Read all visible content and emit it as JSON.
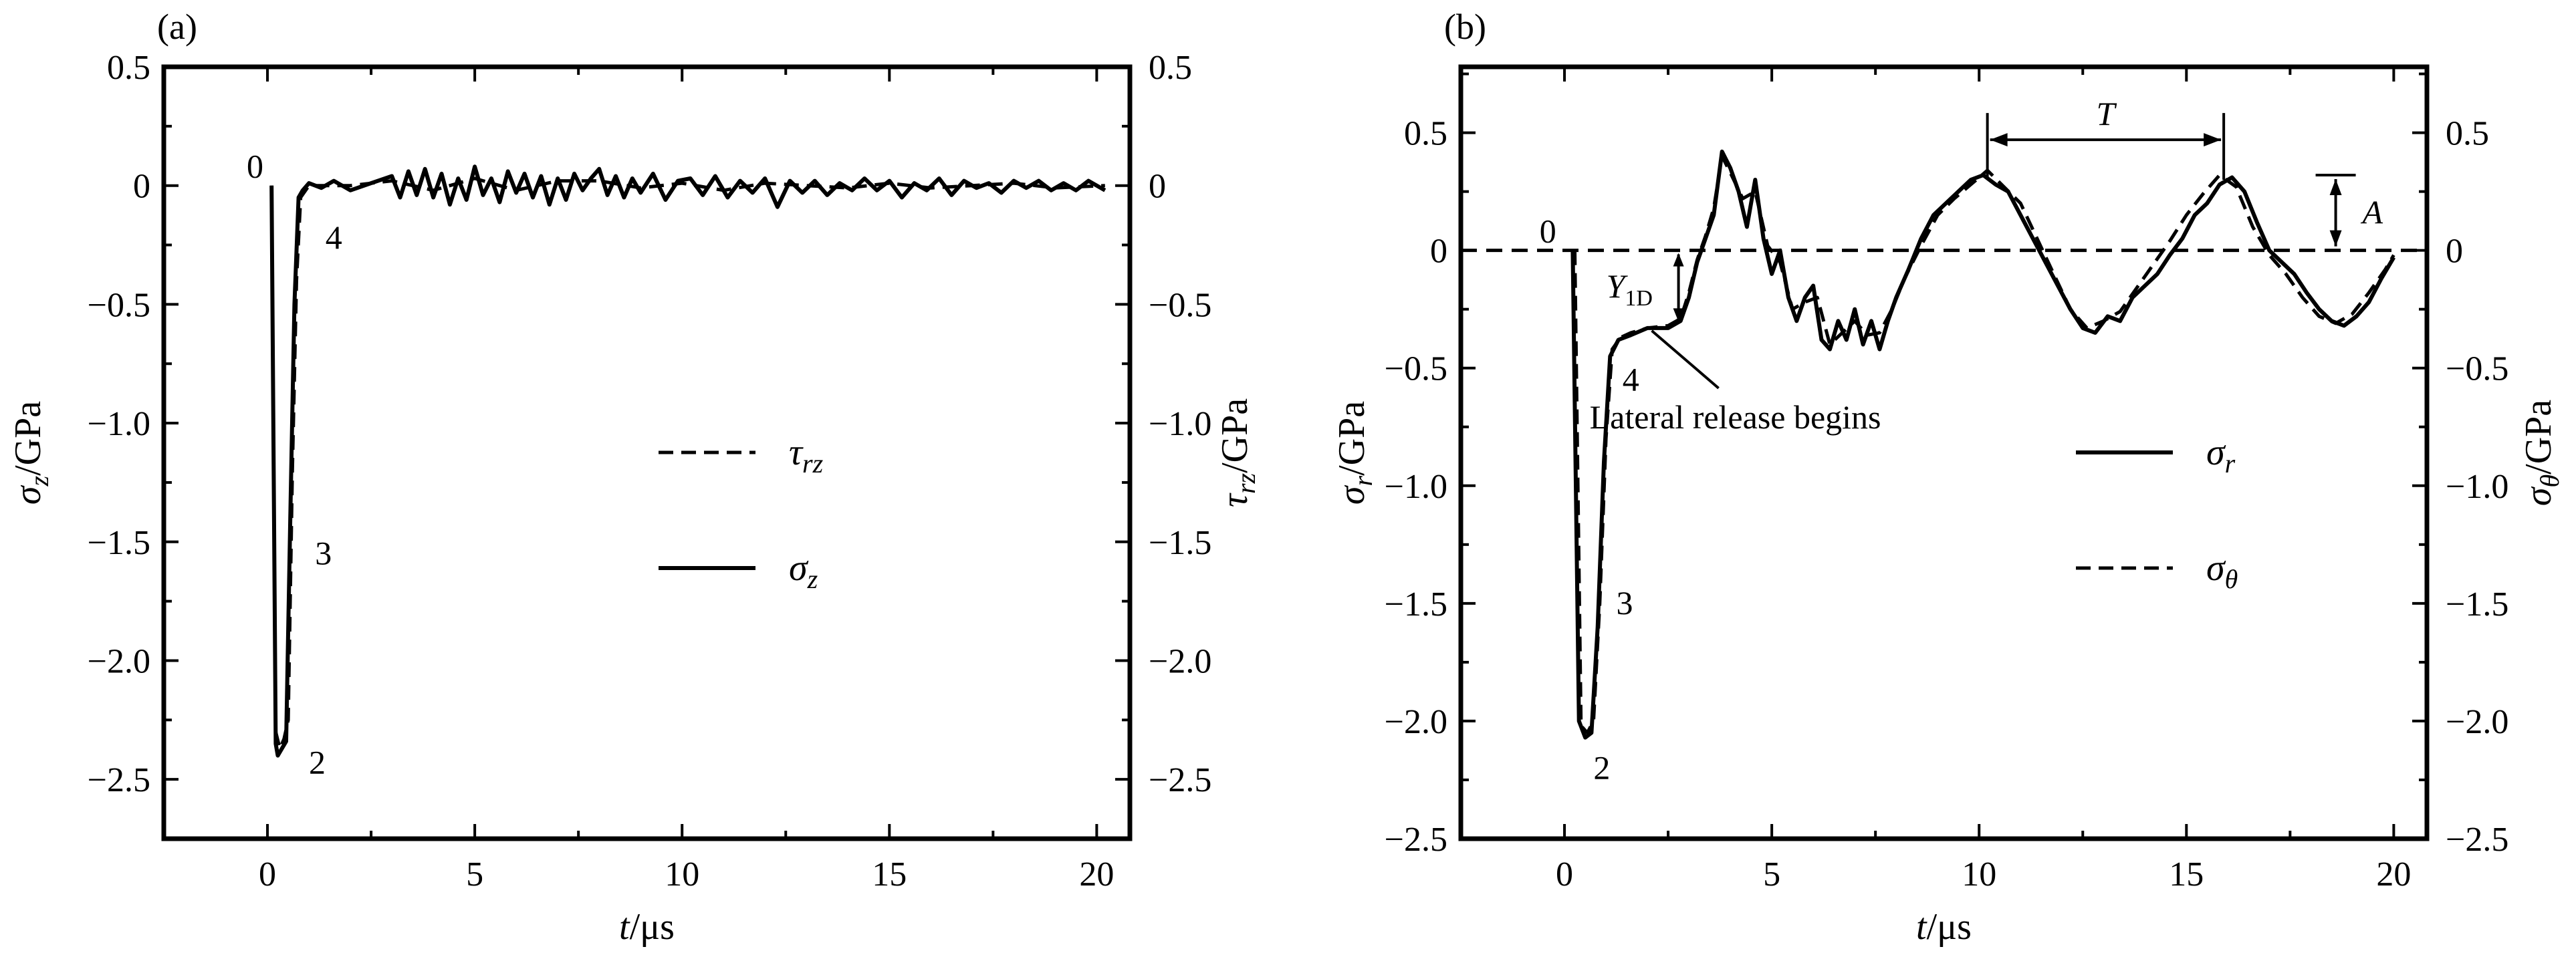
{
  "chart_data": [
    {
      "panel_label": "(a)",
      "type": "line",
      "xlabel_var": "t",
      "xlabel_unit": "/μs",
      "ylabel_left": {
        "sym": "σ",
        "sub": "z",
        "unit": "/GPa"
      },
      "ylabel_right": {
        "sym": "τ",
        "sub": "rz",
        "unit": "/GPa"
      },
      "xlim": [
        -2.5,
        20.8
      ],
      "ylim": [
        -2.75,
        0.5
      ],
      "xticks": [
        0,
        5,
        10,
        15,
        20
      ],
      "xtick_labels": [
        "0",
        "5",
        "10",
        "15",
        "20"
      ],
      "yticks": [
        0.5,
        0,
        -0.5,
        -1.0,
        -1.5,
        -2.0,
        -2.5
      ],
      "ytick_labels_left": [
        "0.5",
        "0",
        "−0.5",
        "−1.0",
        "−1.5",
        "−2.0",
        "−2.5"
      ],
      "ytick_labels_right": [
        "0.5",
        "0",
        "−0.5",
        "−1.0",
        "−1.5",
        "−2.0",
        "−2.5"
      ],
      "legend": [
        {
          "sym": "τ",
          "sub": "rz",
          "style": "dashed"
        },
        {
          "sym": "σ",
          "sub": "z",
          "style": "solid"
        }
      ],
      "point_labels": [
        {
          "text": "0",
          "x": -0.3,
          "y": 0.08
        },
        {
          "text": "4",
          "x": 1.6,
          "y": -0.22
        },
        {
          "text": "3",
          "x": 1.35,
          "y": -1.55
        },
        {
          "text": "2",
          "x": 1.2,
          "y": -2.43
        }
      ],
      "series": [
        {
          "style": "solid",
          "x": [
            0.1,
            0.2,
            0.25,
            0.35,
            0.45,
            0.55,
            0.65,
            0.75,
            0.85,
            1.0,
            1.3,
            1.6,
            2.0,
            2.5,
            3.0,
            3.2,
            3.4,
            3.6,
            3.8,
            4.0,
            4.2,
            4.4,
            4.6,
            4.8,
            5.0,
            5.2,
            5.4,
            5.6,
            5.8,
            6.0,
            6.2,
            6.4,
            6.6,
            6.8,
            7.0,
            7.2,
            7.4,
            7.6,
            7.8,
            8.0,
            8.2,
            8.4,
            8.6,
            8.8,
            9.0,
            9.3,
            9.6,
            9.9,
            10.2,
            10.5,
            10.8,
            11.1,
            11.4,
            11.7,
            12.0,
            12.3,
            12.6,
            12.9,
            13.2,
            13.5,
            13.8,
            14.1,
            14.4,
            14.7,
            15.0,
            15.3,
            15.6,
            15.9,
            16.2,
            16.5,
            16.8,
            17.1,
            17.4,
            17.7,
            18.0,
            18.3,
            18.6,
            18.9,
            19.2,
            19.5,
            19.8,
            20.2
          ],
          "y": [
            0.0,
            -2.35,
            -2.4,
            -2.37,
            -2.34,
            -1.4,
            -0.5,
            -0.05,
            -0.02,
            0.01,
            -0.01,
            0.02,
            -0.02,
            0.01,
            0.04,
            -0.05,
            0.06,
            -0.04,
            0.07,
            -0.05,
            0.05,
            -0.08,
            0.03,
            -0.06,
            0.08,
            -0.04,
            0.03,
            -0.07,
            0.06,
            -0.03,
            0.05,
            -0.05,
            0.04,
            -0.08,
            0.03,
            -0.06,
            0.05,
            -0.02,
            0.03,
            0.07,
            -0.04,
            0.04,
            -0.05,
            0.03,
            -0.03,
            0.05,
            -0.06,
            0.02,
            0.03,
            -0.04,
            0.04,
            -0.05,
            0.02,
            -0.03,
            0.03,
            -0.09,
            0.02,
            -0.03,
            0.02,
            -0.04,
            0.01,
            -0.02,
            0.03,
            -0.02,
            0.02,
            -0.05,
            0.01,
            -0.02,
            0.03,
            -0.04,
            0.02,
            -0.01,
            0.01,
            -0.03,
            0.02,
            -0.01,
            0.02,
            -0.02,
            0.01,
            -0.02,
            0.02,
            -0.02
          ]
        },
        {
          "style": "dashed",
          "x": [
            0.1,
            0.2,
            0.3,
            0.4,
            0.5,
            0.6,
            0.7,
            0.8,
            1.0,
            2.0,
            3.0,
            4.0,
            5.0,
            6.0,
            7.0,
            8.0,
            9.0,
            10.0,
            11.0,
            12.0,
            13.0,
            14.0,
            15.0,
            16.0,
            17.0,
            18.0,
            19.0,
            20.2
          ],
          "y": [
            0.0,
            -2.3,
            -2.37,
            -2.33,
            -2.25,
            -1.2,
            -0.4,
            -0.05,
            0.0,
            0.0,
            0.02,
            -0.02,
            0.03,
            -0.02,
            0.02,
            0.02,
            -0.01,
            0.01,
            -0.02,
            0.01,
            0.0,
            -0.01,
            0.01,
            -0.01,
            0.0,
            0.01,
            -0.01,
            0.0
          ]
        }
      ]
    },
    {
      "panel_label": "(b)",
      "type": "line",
      "xlabel_var": "t",
      "xlabel_unit": "/μs",
      "ylabel_left": {
        "sym": "σ",
        "sub": "r",
        "unit": "/GPa"
      },
      "ylabel_right": {
        "sym": "σ",
        "sub": "θ",
        "unit": "/GPa"
      },
      "xlim": [
        -2.5,
        20.8
      ],
      "ylim": [
        -2.5,
        0.78
      ],
      "xticks": [
        0,
        5,
        10,
        15,
        20
      ],
      "xtick_labels": [
        "0",
        "5",
        "10",
        "15",
        "20"
      ],
      "yticks": [
        0.5,
        0,
        -0.5,
        -1.0,
        -1.5,
        -2.0,
        -2.5
      ],
      "ytick_labels_left": [
        "0.5",
        "0",
        "−0.5",
        "−1.0",
        "−1.5",
        "−2.0",
        "−2.5"
      ],
      "ytick_labels_right": [
        "0.5",
        "0",
        "−0.5",
        "−1.0",
        "−1.5",
        "−2.0",
        "−2.5"
      ],
      "legend": [
        {
          "sym": "σ",
          "sub": "r",
          "style": "solid"
        },
        {
          "sym": "σ",
          "sub": "θ",
          "style": "dashed"
        }
      ],
      "point_labels": [
        {
          "text": "0",
          "x": -0.4,
          "y": 0.08
        },
        {
          "text": "4",
          "x": 1.6,
          "y": -0.55
        },
        {
          "text": "3",
          "x": 1.45,
          "y": -1.5
        },
        {
          "text": "2",
          "x": 0.9,
          "y": -2.2
        }
      ],
      "annotations": {
        "period_label": "T",
        "period_x": [
          10.2,
          15.9
        ],
        "period_y": 0.47,
        "amplitude_label": "A",
        "amplitude_x": 18.6,
        "amplitude_y": [
          0.0,
          0.32
        ],
        "yield_label": "Y",
        "yield_sub": "1D",
        "yield_x": 2.75,
        "yield_y": [
          -0.32,
          0.0
        ],
        "release_text": "Lateral release begins",
        "release_point": [
          2.75,
          -0.33
        ]
      },
      "series": [
        {
          "style": "solid",
          "x": [
            0.2,
            0.35,
            0.5,
            0.65,
            0.8,
            0.95,
            1.1,
            1.3,
            1.6,
            2.0,
            2.5,
            2.8,
            3.0,
            3.2,
            3.4,
            3.6,
            3.8,
            4.0,
            4.2,
            4.4,
            4.6,
            4.8,
            5.0,
            5.2,
            5.4,
            5.6,
            5.8,
            6.0,
            6.2,
            6.4,
            6.6,
            6.8,
            7.0,
            7.2,
            7.4,
            7.6,
            7.8,
            8.0,
            8.3,
            8.6,
            8.9,
            9.2,
            9.5,
            9.8,
            10.1,
            10.4,
            10.7,
            11.0,
            11.3,
            11.6,
            11.9,
            12.2,
            12.5,
            12.8,
            13.1,
            13.4,
            13.7,
            14.0,
            14.3,
            14.6,
            14.9,
            15.2,
            15.5,
            15.8,
            16.1,
            16.4,
            16.7,
            17.0,
            17.3,
            17.6,
            17.9,
            18.2,
            18.5,
            18.8,
            19.1,
            19.4,
            19.7,
            20.0
          ],
          "y": [
            0.0,
            -2.0,
            -2.07,
            -2.05,
            -1.6,
            -0.9,
            -0.45,
            -0.38,
            -0.36,
            -0.33,
            -0.33,
            -0.3,
            -0.2,
            -0.05,
            0.05,
            0.15,
            0.42,
            0.35,
            0.25,
            0.1,
            0.3,
            0.05,
            -0.1,
            0.0,
            -0.2,
            -0.3,
            -0.2,
            -0.15,
            -0.38,
            -0.42,
            -0.3,
            -0.38,
            -0.25,
            -0.4,
            -0.3,
            -0.42,
            -0.3,
            -0.2,
            -0.08,
            0.05,
            0.15,
            0.2,
            0.25,
            0.3,
            0.32,
            0.28,
            0.25,
            0.15,
            0.05,
            -0.05,
            -0.15,
            -0.25,
            -0.33,
            -0.35,
            -0.28,
            -0.3,
            -0.2,
            -0.15,
            -0.1,
            -0.02,
            0.05,
            0.15,
            0.2,
            0.28,
            0.31,
            0.25,
            0.12,
            0.0,
            -0.05,
            -0.1,
            -0.18,
            -0.25,
            -0.3,
            -0.32,
            -0.28,
            -0.22,
            -0.12,
            -0.03
          ]
        },
        {
          "style": "dashed",
          "x": [
            0.25,
            0.4,
            0.55,
            0.7,
            0.85,
            1.0,
            1.15,
            1.35,
            1.6,
            2.0,
            2.5,
            2.8,
            3.0,
            3.2,
            3.4,
            3.6,
            3.8,
            4.0,
            4.3,
            4.6,
            4.9,
            5.2,
            5.5,
            5.8,
            6.1,
            6.4,
            6.7,
            7.0,
            7.3,
            7.6,
            7.9,
            8.2,
            8.6,
            9.0,
            9.4,
            9.8,
            10.2,
            10.6,
            11.0,
            11.4,
            11.8,
            12.2,
            12.6,
            13.0,
            13.4,
            13.8,
            14.2,
            14.6,
            15.0,
            15.4,
            15.8,
            16.2,
            16.6,
            17.0,
            17.4,
            17.8,
            18.2,
            18.6,
            19.0,
            19.4,
            19.8,
            20.0
          ],
          "y": [
            0.0,
            -2.02,
            -2.05,
            -2.0,
            -1.5,
            -0.8,
            -0.42,
            -0.37,
            -0.35,
            -0.33,
            -0.32,
            -0.29,
            -0.18,
            -0.04,
            0.06,
            0.18,
            0.4,
            0.33,
            0.22,
            0.25,
            0.02,
            -0.05,
            -0.25,
            -0.22,
            -0.2,
            -0.4,
            -0.35,
            -0.3,
            -0.36,
            -0.35,
            -0.25,
            -0.12,
            0.02,
            0.15,
            0.22,
            0.28,
            0.34,
            0.27,
            0.2,
            0.05,
            -0.1,
            -0.25,
            -0.33,
            -0.3,
            -0.26,
            -0.16,
            -0.06,
            0.04,
            0.15,
            0.24,
            0.32,
            0.27,
            0.1,
            -0.02,
            -0.1,
            -0.2,
            -0.28,
            -0.31,
            -0.27,
            -0.18,
            -0.08,
            -0.02
          ]
        }
      ]
    }
  ]
}
